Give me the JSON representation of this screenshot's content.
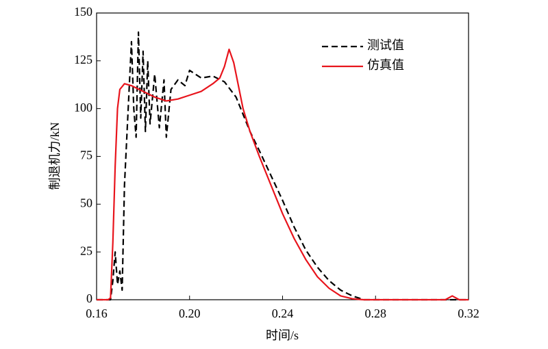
{
  "chart_data": {
    "type": "line",
    "xlabel": "时间/s",
    "ylabel": "制退机力/kN",
    "xlim": [
      0.16,
      0.32
    ],
    "xticks": [
      0.16,
      {
        "value": 0.2,
        "label": "0.20"
      },
      0.24,
      0.28,
      0.32
    ],
    "ylim": [
      0,
      150
    ],
    "yticks": [
      0,
      25,
      50,
      75,
      100,
      125,
      150
    ],
    "legend": "upper right",
    "series": [
      {
        "name": "测试值",
        "color": "#000000",
        "dash": true,
        "x": [
          0.16,
          0.166,
          0.167,
          0.168,
          0.169,
          0.17,
          0.171,
          0.172,
          0.173,
          0.174,
          0.175,
          0.176,
          0.177,
          0.178,
          0.179,
          0.18,
          0.181,
          0.182,
          0.183,
          0.185,
          0.187,
          0.189,
          0.19,
          0.192,
          0.195,
          0.198,
          0.2,
          0.205,
          0.21,
          0.215,
          0.22,
          0.223,
          0.226,
          0.23,
          0.235,
          0.24,
          0.245,
          0.25,
          0.255,
          0.26,
          0.265,
          0.27,
          0.275,
          0.28,
          0.32
        ],
        "values": [
          0,
          0,
          10,
          25,
          8,
          15,
          5,
          60,
          85,
          110,
          135,
          100,
          85,
          140,
          95,
          130,
          88,
          125,
          92,
          118,
          90,
          115,
          85,
          110,
          115,
          112,
          120,
          116,
          117,
          114,
          106,
          97,
          88,
          78,
          65,
          52,
          38,
          26,
          17,
          10,
          5,
          2,
          0,
          0,
          0
        ]
      },
      {
        "name": "仿真值",
        "color": "#e8141c",
        "dash": false,
        "x": [
          0.16,
          0.165,
          0.166,
          0.167,
          0.168,
          0.169,
          0.17,
          0.172,
          0.175,
          0.18,
          0.185,
          0.19,
          0.195,
          0.2,
          0.205,
          0.21,
          0.213,
          0.215,
          0.217,
          0.219,
          0.221,
          0.223,
          0.226,
          0.23,
          0.235,
          0.24,
          0.245,
          0.25,
          0.255,
          0.26,
          0.265,
          0.27,
          0.275,
          0.28,
          0.29,
          0.3,
          0.31,
          0.313,
          0.316,
          0.32
        ],
        "values": [
          0,
          0,
          1,
          30,
          70,
          100,
          110,
          113,
          112,
          109,
          106,
          104,
          105,
          107,
          109,
          113,
          116,
          122,
          131,
          124,
          112,
          100,
          88,
          75,
          60,
          45,
          32,
          21,
          12,
          6,
          2,
          0.5,
          0,
          0,
          0,
          0,
          0,
          2,
          0,
          0
        ]
      }
    ]
  }
}
